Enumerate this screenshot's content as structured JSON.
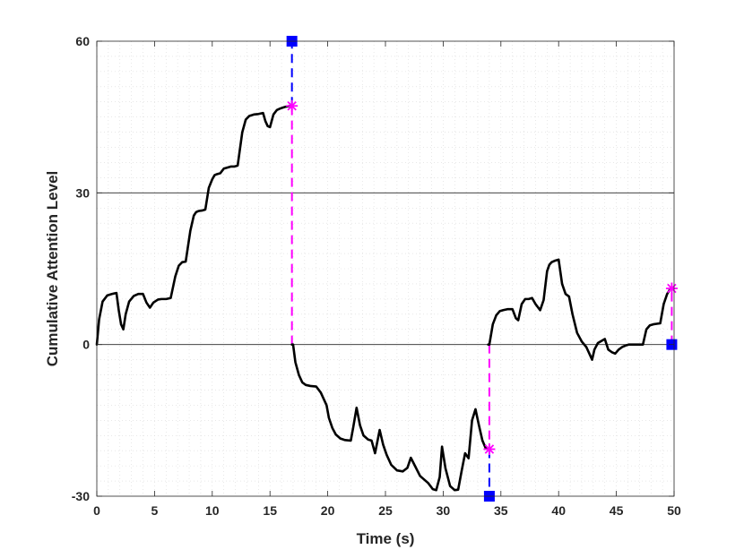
{
  "chart_data": {
    "type": "line",
    "title": "",
    "xlabel": "Time (s)",
    "ylabel": "Cumulative Attention Level",
    "xlim": [
      0,
      50
    ],
    "ylim": [
      -30,
      60
    ],
    "xticks": [
      0,
      5,
      10,
      15,
      20,
      25,
      30,
      35,
      40,
      45,
      50
    ],
    "yticks": [
      -30,
      0,
      30,
      60
    ],
    "grid": {
      "major": "y-only",
      "minor": "dotted"
    },
    "colors": {
      "curve": "#000000",
      "switch_marker": "#ff00ff",
      "reset_marker": "#0000ff",
      "axes": "#262626",
      "grid": "#d9d9d9"
    },
    "series": [
      {
        "style": "line",
        "color": "#000000",
        "segments": [
          {
            "x": [
              0,
              0.2,
              0.5,
              0.9,
              1.3,
              1.7,
              1.9,
              2.1,
              2.3,
              2.5,
              2.8,
              3.2,
              3.6,
              4.0,
              4.3,
              4.6,
              4.9,
              5.3,
              5.6,
              6.0,
              6.4,
              6.8,
              7.1,
              7.4,
              7.7,
              8.1,
              8.4,
              8.6,
              8.8,
              9.1,
              9.4,
              9.7,
              10.0,
              10.2,
              10.4,
              10.7,
              11.0,
              11.3,
              11.6,
              11.9,
              12.2,
              12.6,
              12.9,
              13.2,
              13.6,
              14.0,
              14.4,
              14.6,
              14.8,
              15.0,
              15.3,
              15.6,
              15.9,
              16.3,
              16.7,
              16.9
            ],
            "y": [
              0,
              5,
              8.5,
              9.7,
              10.0,
              10.2,
              6.8,
              4.0,
              3.0,
              6.0,
              8.5,
              9.6,
              10.0,
              10.0,
              8.3,
              7.3,
              8.3,
              8.9,
              9.0,
              9.0,
              9.2,
              13.5,
              15.6,
              16.3,
              16.4,
              22.5,
              25.5,
              26.2,
              26.4,
              26.5,
              26.7,
              31.0,
              32.7,
              33.5,
              33.7,
              33.9,
              34.8,
              35.0,
              35.2,
              35.2,
              35.4,
              42.0,
              44.5,
              45.2,
              45.5,
              45.6,
              45.8,
              44.2,
              43.2,
              43.0,
              45.5,
              46.4,
              46.7,
              47.0,
              47.2,
              47.2
            ]
          },
          {
            "x": [
              17.0,
              17.2,
              17.5,
              17.8,
              18.1,
              18.5,
              19.0,
              19.4,
              19.9,
              20.1,
              20.4,
              20.7,
              21.1,
              21.5,
              22.0,
              22.2,
              22.5,
              22.8,
              23.1,
              23.5,
              23.8,
              24.1,
              24.5,
              24.8,
              25.1,
              25.5,
              26.0,
              26.5,
              26.9,
              27.2,
              27.6,
              28.0,
              28.3,
              28.7,
              29.1,
              29.4,
              29.7,
              29.9,
              30.2,
              30.6,
              31.0,
              31.3,
              31.6,
              31.9,
              32.2,
              32.5,
              32.8,
              33.1,
              33.4,
              33.7,
              33.9
            ],
            "y": [
              0,
              -3.5,
              -6,
              -7.5,
              -8,
              -8.2,
              -8.3,
              -9.5,
              -12,
              -14.5,
              -16.5,
              -17.8,
              -18.6,
              -18.9,
              -19.0,
              -16.5,
              -12.5,
              -16.0,
              -18.0,
              -18.8,
              -19.0,
              -21.5,
              -16.9,
              -19.8,
              -21.8,
              -23.8,
              -24.9,
              -25.1,
              -24.4,
              -22.4,
              -24.2,
              -26.0,
              -26.6,
              -27.4,
              -28.6,
              -28.8,
              -26.2,
              -20.2,
              -24.5,
              -28.0,
              -28.8,
              -28.7,
              -25.0,
              -21.5,
              -22.5,
              -15.0,
              -12.8,
              -16.0,
              -19.0,
              -20.6,
              -20.7
            ]
          },
          {
            "x": [
              34.0,
              34.3,
              34.6,
              34.9,
              35.2,
              35.6,
              36.0,
              36.3,
              36.5,
              36.8,
              37.1,
              37.4,
              37.7,
              38.0,
              38.4,
              38.7,
              39.0,
              39.2,
              39.4,
              39.7,
              40.0,
              40.3,
              40.6,
              40.9,
              41.2,
              41.6,
              42.0,
              42.4,
              42.7,
              42.9,
              43.1,
              43.4,
              43.7,
              44.0,
              44.3,
              44.6,
              44.9,
              45.2,
              45.5,
              45.8,
              46.1,
              46.4,
              46.7,
              47.0,
              47.3,
              47.6,
              47.9,
              48.2,
              48.5,
              48.8,
              49.1,
              49.4,
              49.7
            ],
            "y": [
              0,
              4.0,
              5.8,
              6.6,
              6.8,
              7.0,
              7.0,
              5.2,
              4.8,
              8.0,
              9.0,
              9.0,
              9.2,
              8.0,
              6.8,
              8.8,
              14.5,
              15.8,
              16.3,
              16.6,
              16.8,
              12.0,
              10.0,
              9.5,
              6.0,
              2.3,
              0.6,
              -0.5,
              -2.0,
              -3.0,
              -1.0,
              0.3,
              0.7,
              1.1,
              -1.0,
              -1.5,
              -1.8,
              -1.0,
              -0.5,
              -0.2,
              0.0,
              0.0,
              0.0,
              0.0,
              0.0,
              3.0,
              3.8,
              4.0,
              4.1,
              4.2,
              8.0,
              10.0,
              11.1
            ]
          }
        ]
      }
    ],
    "switch_lines": [
      {
        "x": 16.9,
        "y_from": 0,
        "y_to": 47.2,
        "color": "#ff00ff",
        "dash": "dashed"
      },
      {
        "x": 16.9,
        "y_from": 47.2,
        "y_to": 60,
        "color": "#0000ff",
        "dash": "dashed"
      },
      {
        "x": 34.0,
        "y_from": 0,
        "y_to": -20.7,
        "color": "#ff00ff",
        "dash": "dashed"
      },
      {
        "x": 34.0,
        "y_from": -20.7,
        "y_to": -30,
        "color": "#0000ff",
        "dash": "dashed"
      },
      {
        "x": 49.8,
        "y_from": 0,
        "y_to": 11.1,
        "color": "#ff00ff",
        "dash": "dashed"
      }
    ],
    "markers": [
      {
        "x": 16.9,
        "y": 47.2,
        "shape": "asterisk",
        "color": "#ff00ff"
      },
      {
        "x": 16.9,
        "y": 60,
        "shape": "square",
        "color": "#0000ff"
      },
      {
        "x": 34.0,
        "y": -20.7,
        "shape": "asterisk",
        "color": "#ff00ff"
      },
      {
        "x": 34.0,
        "y": -30,
        "shape": "square",
        "color": "#0000ff"
      },
      {
        "x": 49.8,
        "y": 11.1,
        "shape": "asterisk",
        "color": "#ff00ff"
      },
      {
        "x": 49.8,
        "y": 0,
        "shape": "square",
        "color": "#0000ff"
      }
    ]
  }
}
